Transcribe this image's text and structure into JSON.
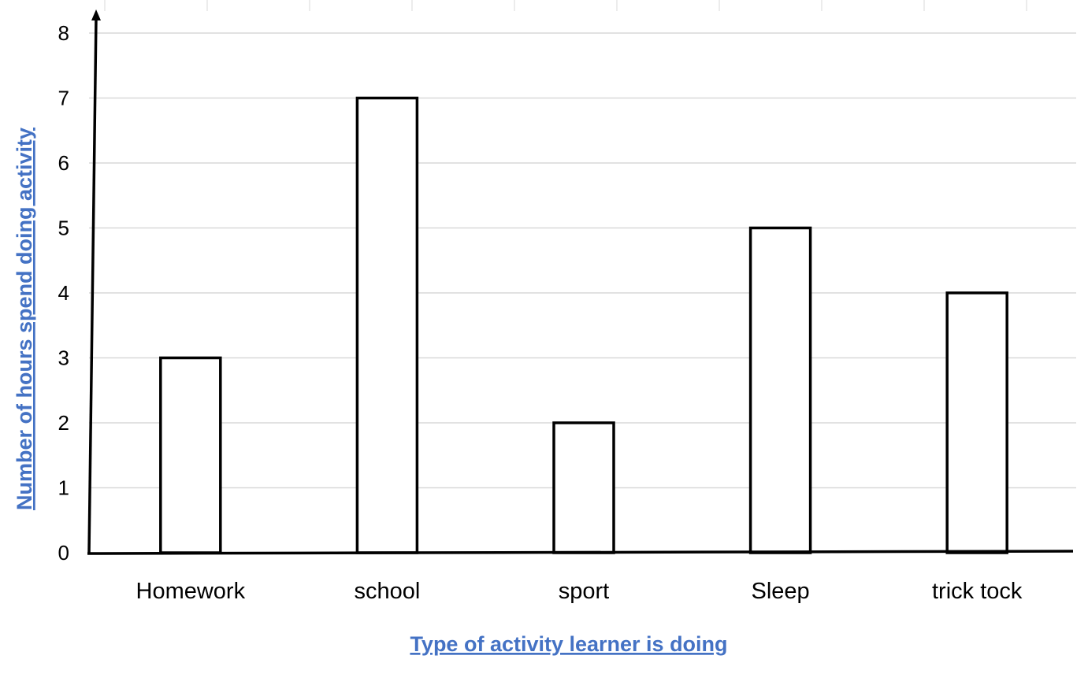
{
  "chart_data": {
    "type": "bar",
    "categories": [
      "Homework",
      "school",
      "sport",
      "Sleep",
      "trick tock"
    ],
    "values": [
      3,
      7,
      2,
      5,
      4
    ],
    "xlabel": "Type of activity learner is doing",
    "ylabel": "Number of hours spend doing activity",
    "ylim": [
      0,
      8
    ],
    "yticks": [
      "0",
      "1",
      "2",
      "3",
      "4",
      "5",
      "6",
      "7",
      "8"
    ],
    "grid": true,
    "bar_fill": "#ffffff",
    "bar_stroke": "#000000",
    "axis_title_color": "#4472c4",
    "gridline_color": "#d9d9d9"
  }
}
